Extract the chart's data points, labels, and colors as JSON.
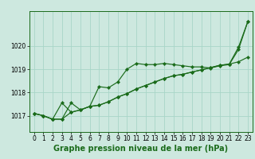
{
  "background_color": "#cde8df",
  "grid_color": "#a8d5c8",
  "line_color": "#1a6b1a",
  "marker_color": "#1a6b1a",
  "xlabel": "Graphe pression niveau de la mer (hPa)",
  "xlabel_fontsize": 7,
  "tick_fontsize": 5.5,
  "xlim": [
    -0.5,
    23.5
  ],
  "ylim": [
    1016.3,
    1021.5
  ],
  "yticks": [
    1017,
    1018,
    1019,
    1020
  ],
  "xticks": [
    0,
    1,
    2,
    3,
    4,
    5,
    6,
    7,
    8,
    9,
    10,
    11,
    12,
    13,
    14,
    15,
    16,
    17,
    18,
    19,
    20,
    21,
    22,
    23
  ],
  "series1_x": [
    0,
    1,
    2,
    3,
    4,
    5,
    6,
    7,
    8,
    9,
    10,
    11,
    12,
    13,
    14,
    15,
    16,
    17,
    18,
    19,
    20,
    21,
    22,
    23
  ],
  "series1_y": [
    1017.1,
    1017.0,
    1016.85,
    1017.55,
    1017.15,
    1017.25,
    1017.4,
    1018.25,
    1018.2,
    1018.45,
    1019.0,
    1019.25,
    1019.2,
    1019.2,
    1019.25,
    1019.2,
    1019.15,
    1019.1,
    1019.1,
    1019.05,
    1019.15,
    1019.2,
    1019.85,
    1021.05
  ],
  "series2_x": [
    0,
    1,
    2,
    3,
    4,
    5,
    6,
    7,
    8,
    9,
    10,
    11,
    12,
    13,
    14,
    15,
    16,
    17,
    18,
    19,
    20,
    21,
    22,
    23
  ],
  "series2_y": [
    1017.1,
    1017.0,
    1016.85,
    1016.85,
    1017.15,
    1017.25,
    1017.4,
    1017.45,
    1017.6,
    1017.8,
    1017.95,
    1018.15,
    1018.3,
    1018.45,
    1018.6,
    1018.72,
    1018.78,
    1018.88,
    1018.97,
    1019.07,
    1019.17,
    1019.22,
    1019.32,
    1019.52
  ],
  "series3_x": [
    0,
    1,
    2,
    3,
    4,
    5,
    6,
    7,
    8,
    9,
    10,
    11,
    12,
    13,
    14,
    15,
    16,
    17,
    18,
    19,
    20,
    21,
    22,
    23
  ],
  "series3_y": [
    1017.1,
    1017.0,
    1016.85,
    1016.85,
    1017.55,
    1017.25,
    1017.4,
    1017.45,
    1017.6,
    1017.8,
    1017.95,
    1018.15,
    1018.3,
    1018.45,
    1018.6,
    1018.72,
    1018.78,
    1018.88,
    1018.97,
    1019.07,
    1019.17,
    1019.22,
    1019.95,
    1021.05
  ]
}
